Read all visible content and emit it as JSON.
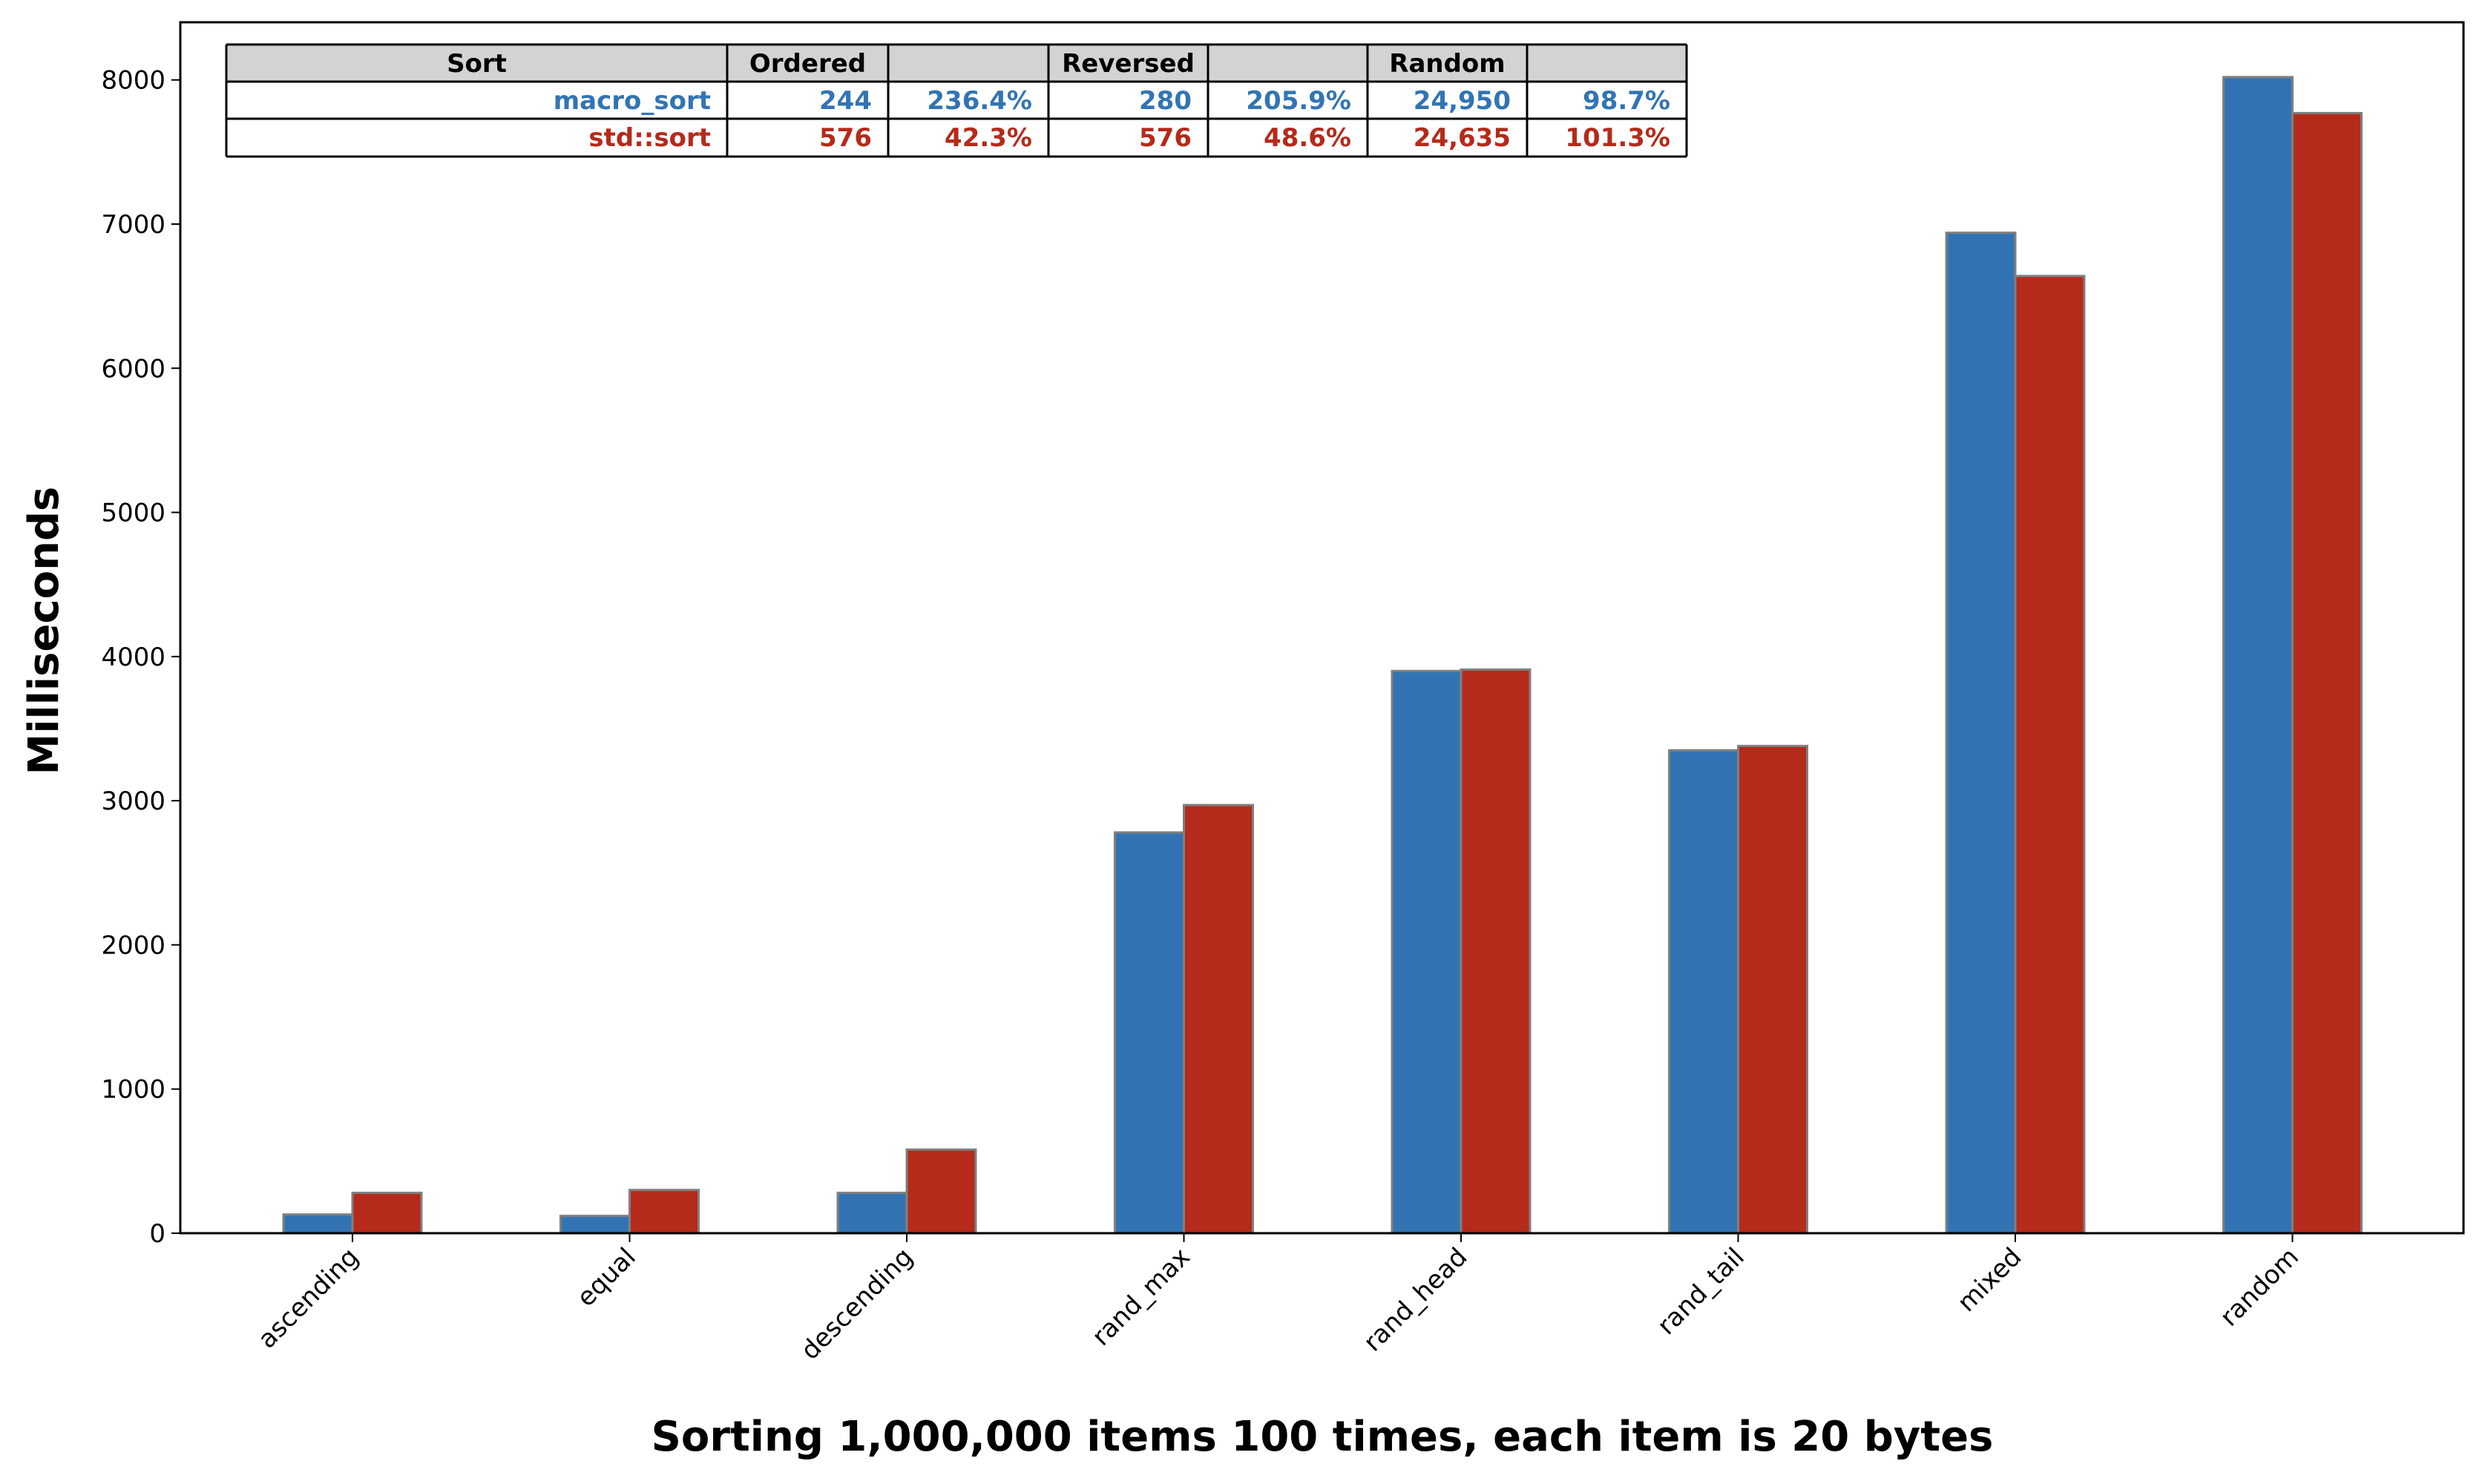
{
  "chart_data": {
    "type": "bar",
    "xlabel": "Sorting 1,000,000 items 100 times, each item is 20 bytes",
    "ylabel": "Milliseconds",
    "ylim": [
      0,
      8400
    ],
    "yticks": [
      0,
      1000,
      2000,
      3000,
      4000,
      5000,
      6000,
      7000,
      8000
    ],
    "categories": [
      "ascending",
      "equal",
      "descending",
      "rand_max",
      "rand_head",
      "rand_tail",
      "mixed",
      "random"
    ],
    "grid": false,
    "legend": "none",
    "series": [
      {
        "color": "#3274b3",
        "values": [
          130,
          120,
          280,
          2780,
          3900,
          3350,
          6940,
          8020
        ]
      },
      {
        "color": "#b52a1a",
        "values": [
          280,
          300,
          580,
          2970,
          3910,
          3380,
          6640,
          7770
        ]
      }
    ],
    "table": {
      "header": [
        "Sort",
        "Ordered",
        "",
        "Reversed",
        "",
        "Random",
        ""
      ],
      "rows": [
        {
          "color": "#3274b3",
          "cells": [
            "macro_sort",
            "244",
            "236.4%",
            "280",
            "205.9%",
            "24,950",
            "98.7%"
          ]
        },
        {
          "color": "#b52a1a",
          "cells": [
            "std::sort",
            "576",
            "42.3%",
            "576",
            "48.6%",
            "24,635",
            "101.3%"
          ]
        }
      ]
    }
  }
}
